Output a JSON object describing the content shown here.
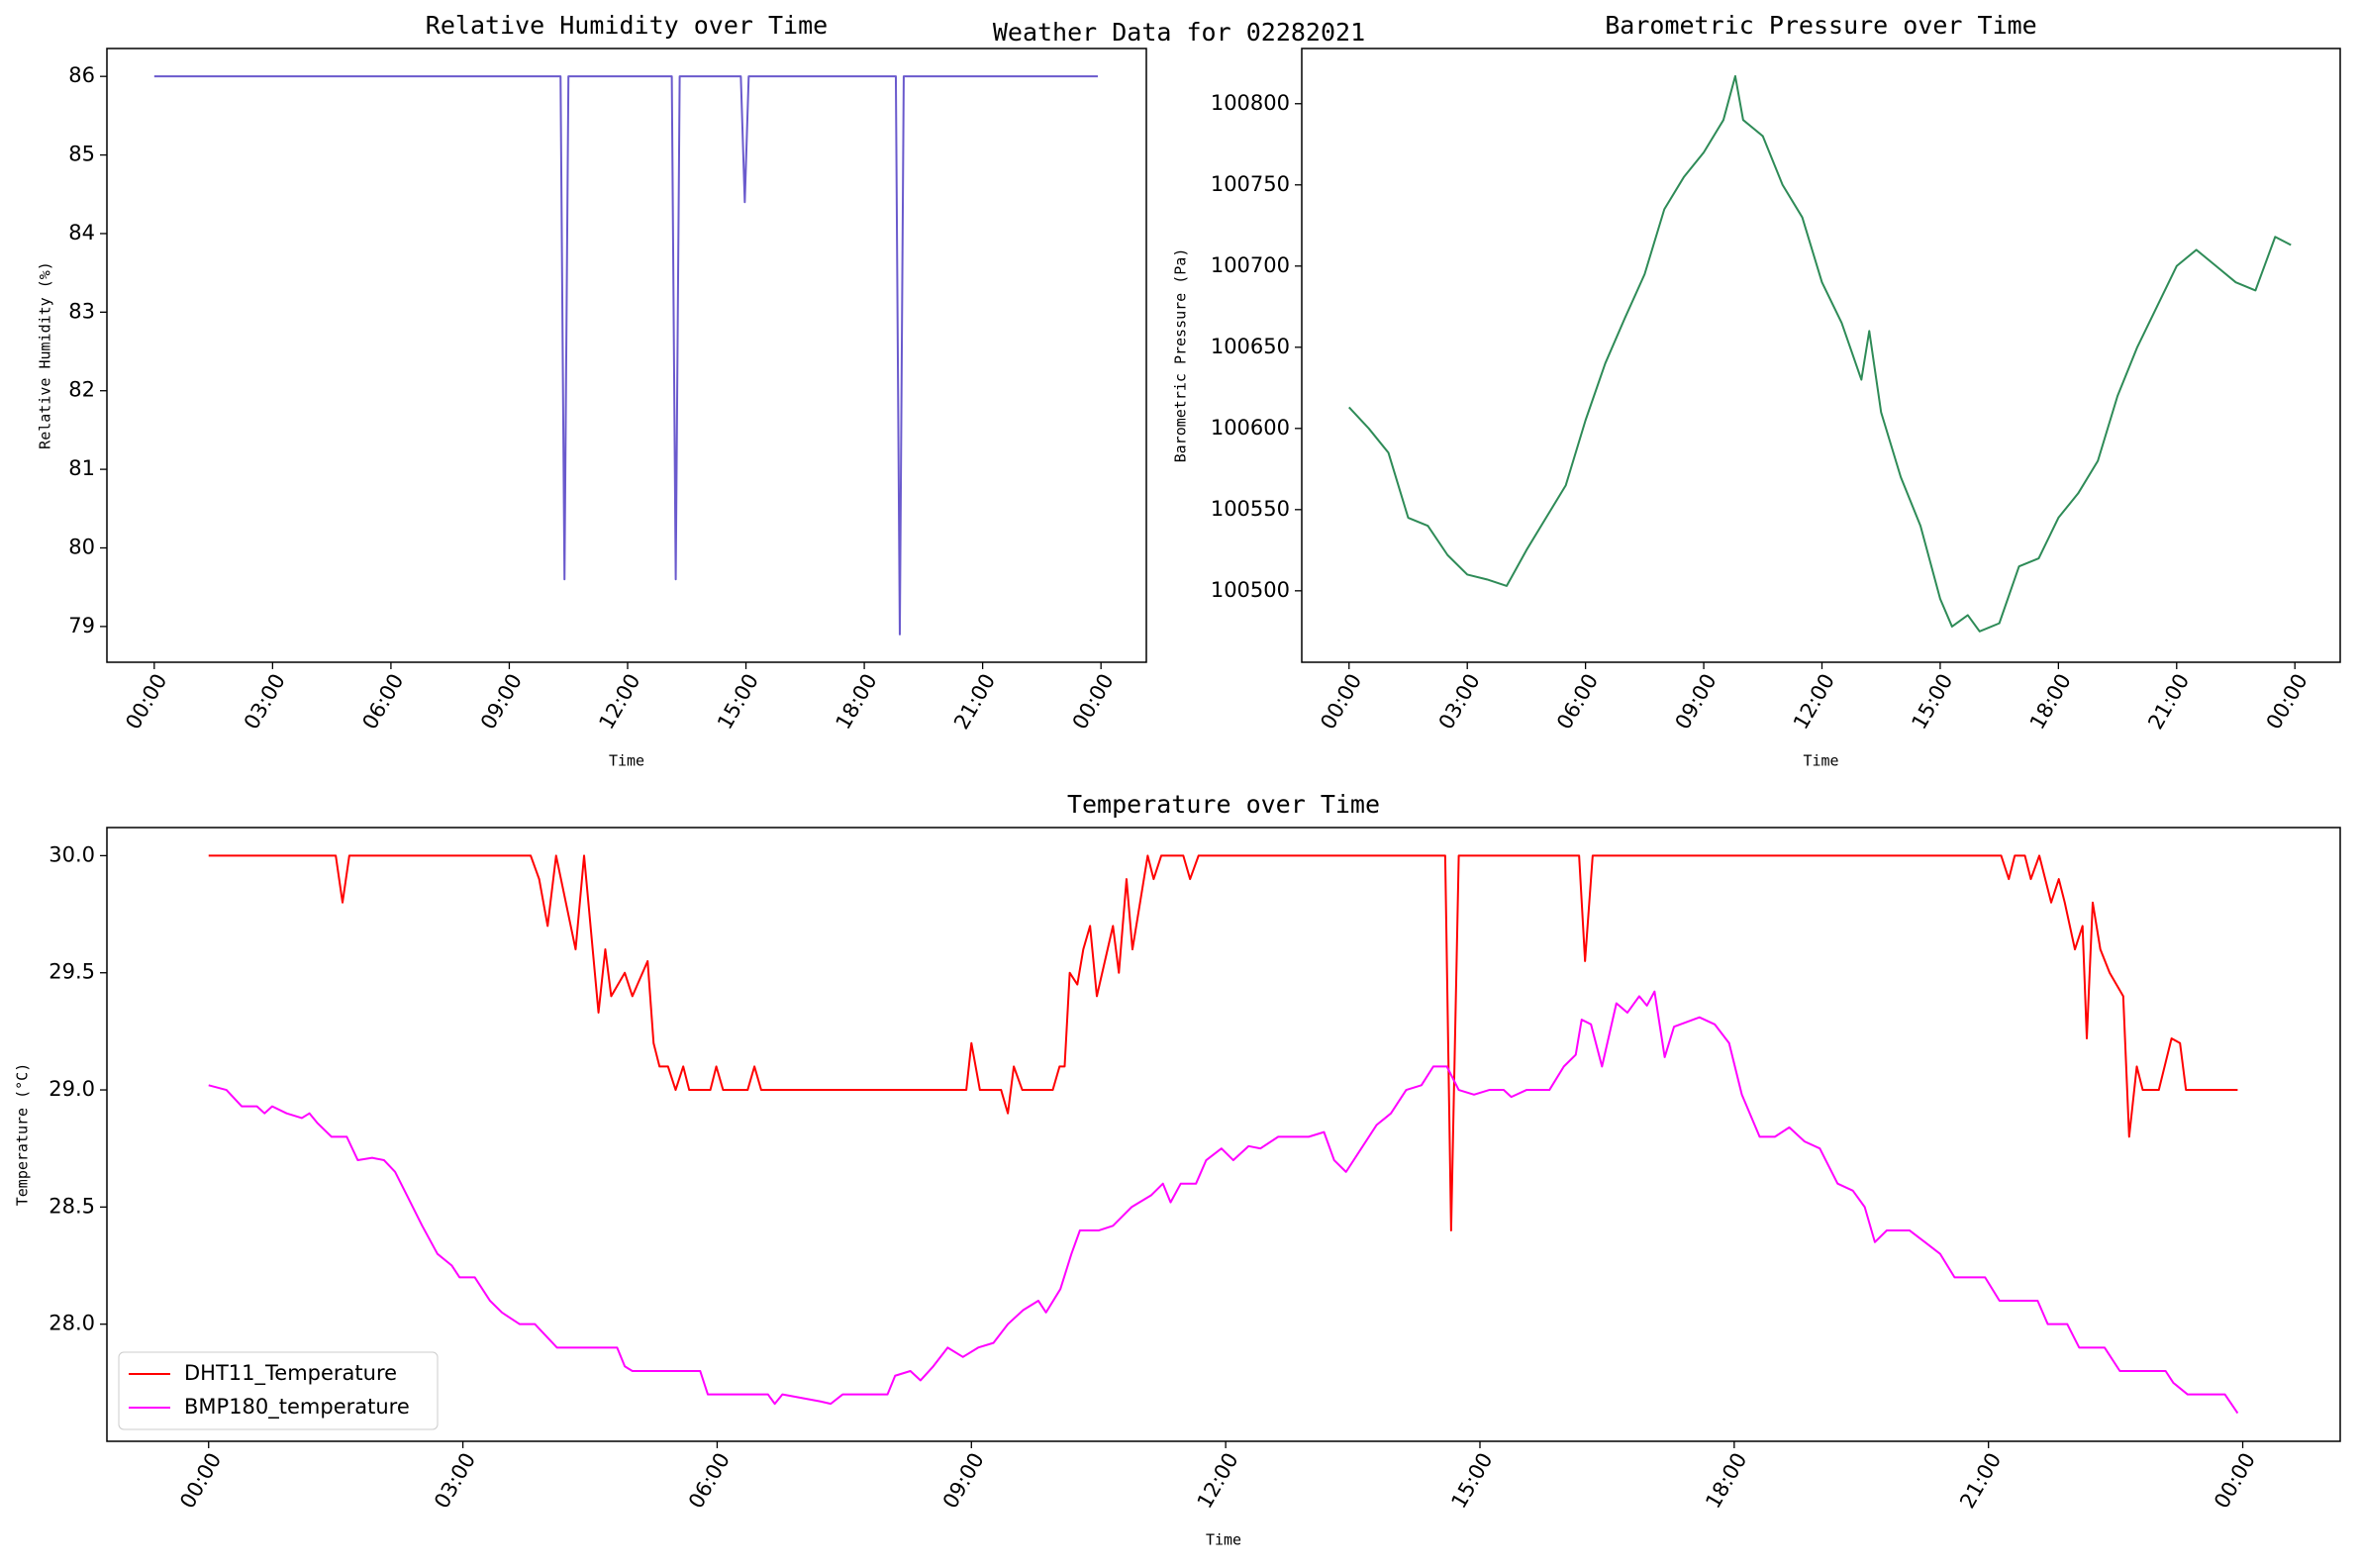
{
  "title": "Weather Data for 02282021",
  "chart_data": [
    {
      "type": "line",
      "title": "Relative Humidity over Time",
      "xlabel": "Time",
      "ylabel": "Relative Humidity (%)",
      "xlim": [
        -1.2,
        25.15
      ],
      "ylim": [
        78.545,
        86.355
      ],
      "xticks": [
        {
          "value": 0,
          "label": "00:00"
        },
        {
          "value": 3,
          "label": "03:00"
        },
        {
          "value": 6,
          "label": "06:00"
        },
        {
          "value": 9,
          "label": "09:00"
        },
        {
          "value": 12,
          "label": "12:00"
        },
        {
          "value": 15,
          "label": "15:00"
        },
        {
          "value": 18,
          "label": "18:00"
        },
        {
          "value": 21,
          "label": "21:00"
        },
        {
          "value": 24,
          "label": "00:00"
        }
      ],
      "yticks": [
        79,
        80,
        81,
        82,
        83,
        84,
        85,
        86
      ],
      "series": [
        {
          "name": "Relative Humidity",
          "color": "#6a5acd",
          "x": [
            0,
            10.3,
            10.4,
            10.5,
            13.12,
            13.22,
            13.32,
            14.87,
            14.97,
            15.07,
            18.8,
            18.9,
            19.0,
            23.92
          ],
          "values": [
            86,
            86,
            79.6,
            86,
            86,
            79.6,
            86,
            86,
            84.4,
            86,
            86,
            78.9,
            86,
            86
          ]
        }
      ]
    },
    {
      "type": "line",
      "title": "Barometric Pressure over Time",
      "xlabel": "Time",
      "ylabel": "Barometric Pressure (Pa)",
      "xlim": [
        -1.2,
        25.15
      ],
      "ylim": [
        100456,
        100834
      ],
      "xticks": [
        {
          "value": 0,
          "label": "00:00"
        },
        {
          "value": 3,
          "label": "03:00"
        },
        {
          "value": 6,
          "label": "06:00"
        },
        {
          "value": 9,
          "label": "09:00"
        },
        {
          "value": 12,
          "label": "12:00"
        },
        {
          "value": 15,
          "label": "15:00"
        },
        {
          "value": 18,
          "label": "18:00"
        },
        {
          "value": 21,
          "label": "21:00"
        },
        {
          "value": 24,
          "label": "00:00"
        }
      ],
      "yticks": [
        100500,
        100550,
        100600,
        100650,
        100700,
        100750,
        100800
      ],
      "series": [
        {
          "name": "Barometric Pressure",
          "color": "#2e8b57",
          "x": [
            0,
            0.5,
            1,
            1.5,
            2,
            2.5,
            3,
            3.5,
            4,
            4.5,
            5,
            5.5,
            6,
            6.5,
            7,
            7.5,
            8,
            8.5,
            9,
            9.5,
            9.8,
            10,
            10.5,
            11,
            11.5,
            12,
            12.5,
            13,
            13.2,
            13.5,
            14,
            14.5,
            15,
            15.3,
            15.7,
            16,
            16.5,
            17,
            17.5,
            18,
            18.5,
            19,
            19.5,
            20,
            20.5,
            21,
            21.5,
            22,
            22.5,
            23,
            23.5,
            23.9
          ],
          "values": [
            100613,
            100600,
            100585,
            100545,
            100540,
            100522,
            100510,
            100507,
            100503,
            100525,
            100545,
            100565,
            100605,
            100640,
            100668,
            100695,
            100735,
            100755,
            100770,
            100790,
            100817,
            100790,
            100780,
            100750,
            100730,
            100690,
            100665,
            100630,
            100660,
            100610,
            100570,
            100540,
            100495,
            100478,
            100485,
            100475,
            100480,
            100515,
            100520,
            100545,
            100560,
            100580,
            100620,
            100650,
            100675,
            100700,
            100710,
            100700,
            100690,
            100685,
            100718,
            100713
          ]
        }
      ]
    },
    {
      "type": "line",
      "title": "Temperature over Time",
      "xlabel": "Time",
      "ylabel": "Temperature (°C)",
      "xlim": [
        -1.2,
        25.15
      ],
      "ylim": [
        27.5,
        30.12
      ],
      "legend": "lower left",
      "xticks": [
        {
          "value": 0,
          "label": "00:00"
        },
        {
          "value": 3,
          "label": "03:00"
        },
        {
          "value": 6,
          "label": "06:00"
        },
        {
          "value": 9,
          "label": "09:00"
        },
        {
          "value": 12,
          "label": "12:00"
        },
        {
          "value": 15,
          "label": "15:00"
        },
        {
          "value": 18,
          "label": "18:00"
        },
        {
          "value": 21,
          "label": "21:00"
        },
        {
          "value": 24,
          "label": "00:00"
        }
      ],
      "yticks": [
        {
          "value": 28,
          "label": "28.0"
        },
        28.5,
        {
          "value": 29,
          "label": "29.0"
        },
        29.5,
        {
          "value": 30,
          "label": "30.0"
        }
      ],
      "series": [
        {
          "name": "DHT11_Temperature",
          "color": "#ff0000",
          "x": [
            0,
            1.5,
            1.58,
            1.66,
            3.8,
            3.9,
            4.0,
            4.1,
            4.33,
            4.43,
            4.6,
            4.68,
            4.75,
            4.91,
            5.0,
            5.18,
            5.25,
            5.32,
            5.42,
            5.51,
            5.6,
            5.67,
            5.92,
            5.99,
            6.07,
            6.36,
            6.44,
            6.52,
            8.94,
            9.0,
            9.1,
            9.35,
            9.43,
            9.5,
            9.6,
            9.96,
            10.04,
            10.1,
            10.16,
            10.25,
            10.32,
            10.4,
            10.48,
            10.67,
            10.74,
            10.83,
            10.9,
            10.99,
            11.08,
            11.15,
            11.24,
            11.5,
            11.58,
            11.68,
            14.59,
            14.66,
            14.75,
            16.17,
            16.24,
            16.33,
            21.15,
            21.24,
            21.31,
            21.43,
            21.5,
            21.6,
            21.74,
            21.83,
            21.9,
            22.02,
            22.11,
            22.16,
            22.23,
            22.32,
            22.43,
            22.59,
            22.66,
            22.75,
            22.82,
            23.01,
            23.16,
            23.26,
            23.33,
            23.94
          ],
          "values": [
            30,
            30,
            29.8,
            30,
            30,
            29.9,
            29.7,
            30,
            29.6,
            30,
            29.33,
            29.6,
            29.4,
            29.5,
            29.4,
            29.55,
            29.2,
            29.1,
            29.1,
            29.0,
            29.1,
            29.0,
            29.0,
            29.1,
            29.0,
            29.0,
            29.1,
            29.0,
            29.0,
            29.2,
            29.0,
            29.0,
            28.9,
            29.1,
            29.0,
            29.0,
            29.1,
            29.1,
            29.5,
            29.45,
            29.6,
            29.7,
            29.4,
            29.7,
            29.5,
            29.9,
            29.6,
            29.8,
            30,
            29.9,
            30,
            30,
            29.9,
            30,
            30,
            28.4,
            30,
            30,
            29.55,
            30,
            30,
            29.9,
            30,
            30,
            29.9,
            30,
            29.8,
            29.9,
            29.8,
            29.6,
            29.7,
            29.22,
            29.8,
            29.6,
            29.5,
            29.4,
            28.8,
            29.1,
            29.0,
            29.0,
            29.22,
            29.2,
            29.0,
            29.0
          ]
        },
        {
          "name": "BMP180_temperature",
          "color": "#ff00ff",
          "x": [
            0,
            0.21,
            0.39,
            0.57,
            0.66,
            0.75,
            0.92,
            1.1,
            1.19,
            1.28,
            1.45,
            1.63,
            1.76,
            1.93,
            2.07,
            2.2,
            2.34,
            2.52,
            2.7,
            2.87,
            2.96,
            3.14,
            3.32,
            3.46,
            3.67,
            3.85,
            4.11,
            4.82,
            4.91,
            5.0,
            5.8,
            5.89,
            6.6,
            6.68,
            6.77,
            7.22,
            7.34,
            7.48,
            8.01,
            8.1,
            8.28,
            8.4,
            8.55,
            8.72,
            8.9,
            9.08,
            9.26,
            9.43,
            9.61,
            9.79,
            9.88,
            10.05,
            10.18,
            10.28,
            10.5,
            10.67,
            10.89,
            11.12,
            11.26,
            11.35,
            11.47,
            11.65,
            11.77,
            11.95,
            12.09,
            12.27,
            12.41,
            12.62,
            12.98,
            13.16,
            13.28,
            13.42,
            13.6,
            13.78,
            13.95,
            14.13,
            14.31,
            14.45,
            14.61,
            14.75,
            14.93,
            15.11,
            15.28,
            15.37,
            15.55,
            15.82,
            15.99,
            16.13,
            16.2,
            16.31,
            16.44,
            16.61,
            16.74,
            16.88,
            16.97,
            17.06,
            17.18,
            17.29,
            17.59,
            17.77,
            17.94,
            18.09,
            18.3,
            18.48,
            18.65,
            18.83,
            19.01,
            19.22,
            19.4,
            19.54,
            19.66,
            19.8,
            20.07,
            20.25,
            20.43,
            20.6,
            20.96,
            21.13,
            21.58,
            21.7,
            21.93,
            22.07,
            22.37,
            22.55,
            23.09,
            23.18,
            23.35,
            23.79,
            23.94
          ],
          "values": [
            29.02,
            29.0,
            28.93,
            28.93,
            28.9,
            28.93,
            28.9,
            28.88,
            28.9,
            28.86,
            28.8,
            28.8,
            28.7,
            28.71,
            28.7,
            28.65,
            28.55,
            28.42,
            28.3,
            28.25,
            28.2,
            28.2,
            28.1,
            28.05,
            28.0,
            28.0,
            27.9,
            27.9,
            27.82,
            27.8,
            27.8,
            27.7,
            27.7,
            27.66,
            27.7,
            27.67,
            27.66,
            27.7,
            27.7,
            27.78,
            27.8,
            27.76,
            27.82,
            27.9,
            27.86,
            27.9,
            27.92,
            28.0,
            28.06,
            28.1,
            28.05,
            28.15,
            28.3,
            28.4,
            28.4,
            28.42,
            28.5,
            28.55,
            28.6,
            28.52,
            28.6,
            28.6,
            28.7,
            28.75,
            28.7,
            28.76,
            28.75,
            28.8,
            28.8,
            28.82,
            28.7,
            28.65,
            28.75,
            28.85,
            28.9,
            29.0,
            29.02,
            29.1,
            29.1,
            29.0,
            28.98,
            29.0,
            29.0,
            28.97,
            29.0,
            29.0,
            29.1,
            29.15,
            29.3,
            29.28,
            29.1,
            29.37,
            29.33,
            29.4,
            29.36,
            29.42,
            29.14,
            29.27,
            29.31,
            29.28,
            29.2,
            28.98,
            28.8,
            28.8,
            28.84,
            28.78,
            28.75,
            28.6,
            28.57,
            28.5,
            28.35,
            28.4,
            28.4,
            28.35,
            28.3,
            28.2,
            28.2,
            28.1,
            28.1,
            28.0,
            28.0,
            27.9,
            27.9,
            27.8,
            27.8,
            27.75,
            27.7,
            27.7,
            27.62
          ]
        }
      ]
    }
  ]
}
